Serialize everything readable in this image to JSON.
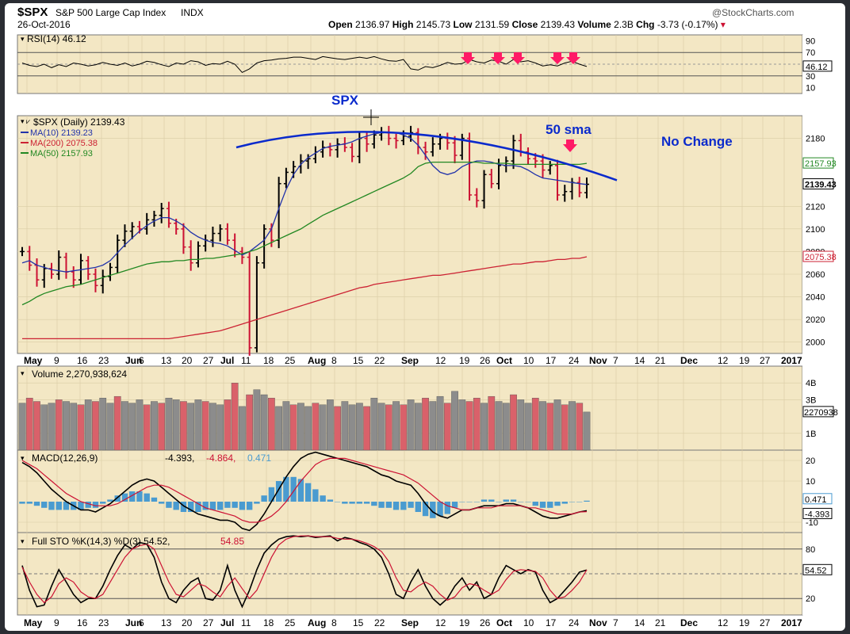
{
  "header": {
    "symbol": "$SPX",
    "name": "S&P 500 Large Cap Index",
    "exchange": "INDX",
    "date": "26-Oct-2016",
    "watermark": "@StockCharts.com",
    "open_label": "Open",
    "open": "2136.97",
    "high_label": "High",
    "high": "2145.73",
    "low_label": "Low",
    "low": "2131.59",
    "close_label": "Close",
    "close": "2139.43",
    "volume_label": "Volume",
    "volume": "2.3B",
    "chg_label": "Chg",
    "chg": "-3.73 (-0.17%)"
  },
  "colors": {
    "panel_bg": "#f3e7c4",
    "up_bar": "#000000",
    "down_bar": "#cc1133",
    "ma10": "#2233aa",
    "ma50": "#228822",
    "ma200": "#cc2233",
    "annotation": "#0a2acc",
    "arrow": "#ff1a66",
    "volume_up": "#8c8c8c",
    "volume_down": "#d9616a",
    "macd_hist": "#4a9bd0"
  },
  "annotations": {
    "spx": "SPX",
    "sma": "50 sma",
    "no_change": "No Change"
  },
  "x_axis": {
    "labels": [
      {
        "text": "May",
        "bold": true
      },
      {
        "text": "9"
      },
      {
        "text": "16"
      },
      {
        "text": "23"
      },
      {
        "text": "Jun",
        "bold": true
      },
      {
        "text": "6"
      },
      {
        "text": "13"
      },
      {
        "text": "20"
      },
      {
        "text": "27"
      },
      {
        "text": "Jul",
        "bold": true
      },
      {
        "text": "11"
      },
      {
        "text": "18"
      },
      {
        "text": "25"
      },
      {
        "text": "Aug",
        "bold": true
      },
      {
        "text": "8"
      },
      {
        "text": "15"
      },
      {
        "text": "22"
      },
      {
        "text": "Sep",
        "bold": true
      },
      {
        "text": "12"
      },
      {
        "text": "19"
      },
      {
        "text": "26"
      },
      {
        "text": "Oct",
        "bold": true
      },
      {
        "text": "10"
      },
      {
        "text": "17"
      },
      {
        "text": "24"
      },
      {
        "text": "Nov",
        "bold": true
      },
      {
        "text": "7"
      },
      {
        "text": "14"
      },
      {
        "text": "21"
      },
      {
        "text": "Dec",
        "bold": true
      },
      {
        "text": "12"
      },
      {
        "text": "19"
      },
      {
        "text": "27"
      },
      {
        "text": "2017",
        "bold": true
      }
    ]
  },
  "chart_data": [
    {
      "type": "line",
      "panel": "rsi",
      "title": "RSI(14) 46.12",
      "last_value": "46.12",
      "ylim": [
        0,
        100
      ],
      "y_ticks": [
        "90",
        "70",
        "30",
        "10"
      ],
      "reference_lines": [
        70,
        30
      ],
      "values": [
        52,
        48,
        46,
        50,
        44,
        49,
        46,
        52,
        50,
        47,
        49,
        53,
        50,
        48,
        52,
        47,
        50,
        55,
        53,
        49,
        46,
        52,
        50,
        56,
        54,
        48,
        51,
        50,
        55,
        50,
        36,
        42,
        52,
        56,
        57,
        59,
        60,
        62,
        62,
        60,
        58,
        63,
        61,
        59,
        58,
        60,
        62,
        60,
        63,
        59,
        56,
        55,
        58,
        42,
        40,
        46,
        44,
        48,
        53,
        50,
        51,
        58,
        54,
        52,
        57,
        55,
        50,
        58,
        54,
        56,
        52,
        47,
        49,
        47,
        52,
        55,
        50,
        46.12
      ],
      "signal_arrows": [
        0.82,
        0.87,
        0.91,
        0.97,
        1.0
      ]
    },
    {
      "type": "line",
      "panel": "price",
      "title": "$SPX (Daily) 2139.43",
      "ylim": [
        1990,
        2200
      ],
      "y_ticks": [
        "2180",
        "2120",
        "2100",
        "2080",
        "2060",
        "2040",
        "2020",
        "2000"
      ],
      "last_value": "2139.43",
      "series": [
        {
          "name": "MA(10) 2139.23",
          "last_value": "2139.23",
          "values": [
            2070,
            2072,
            2068,
            2066,
            2064,
            2063,
            2062,
            2063,
            2064,
            2065,
            2066,
            2068,
            2072,
            2079,
            2086,
            2092,
            2098,
            2103,
            2107,
            2110,
            2110,
            2107,
            2103,
            2097,
            2093,
            2090,
            2088,
            2087,
            2085,
            2081,
            2077,
            2080,
            2085,
            2090,
            2100,
            2118,
            2135,
            2148,
            2157,
            2163,
            2167,
            2171,
            2173,
            2174,
            2175,
            2177,
            2180,
            2182,
            2184,
            2185,
            2185,
            2185,
            2183,
            2180,
            2174,
            2165,
            2156,
            2150,
            2148,
            2150,
            2155,
            2158,
            2160,
            2160,
            2159,
            2157,
            2156,
            2156,
            2155,
            2152,
            2148,
            2145,
            2144,
            2143,
            2142,
            2141,
            2140,
            2139.23
          ]
        },
        {
          "name": "MA(200) 2075.38",
          "last_value": "2075.38",
          "values": [
            2003,
            2003,
            2003,
            2003,
            2003,
            2003,
            2003,
            2003,
            2003,
            2003,
            2003,
            2003,
            2003,
            2003,
            2003,
            2003,
            2003,
            2003,
            2003,
            2003,
            2003,
            2004,
            2005,
            2006,
            2007,
            2008,
            2009,
            2010,
            2012,
            2014,
            2016,
            2018,
            2020,
            2022,
            2024,
            2026,
            2028,
            2030,
            2032,
            2034,
            2036,
            2038,
            2040,
            2042,
            2044,
            2046,
            2048,
            2049,
            2051,
            2052,
            2053,
            2054,
            2055,
            2056,
            2057,
            2058,
            2059,
            2059,
            2060,
            2061,
            2062,
            2063,
            2064,
            2065,
            2066,
            2067,
            2068,
            2069,
            2069,
            2070,
            2071,
            2071,
            2072,
            2073,
            2073,
            2074,
            2074,
            2075.38
          ]
        },
        {
          "name": "MA(50) 2157.93",
          "last_value": "2157.93",
          "values": [
            2033,
            2036,
            2040,
            2043,
            2045,
            2047,
            2049,
            2050,
            2051,
            2053,
            2055,
            2057,
            2059,
            2061,
            2063,
            2065,
            2067,
            2069,
            2070,
            2071,
            2071,
            2072,
            2072,
            2073,
            2073,
            2074,
            2074,
            2075,
            2076,
            2077,
            2078,
            2080,
            2082,
            2085,
            2088,
            2091,
            2094,
            2097,
            2100,
            2104,
            2108,
            2112,
            2115,
            2118,
            2121,
            2124,
            2127,
            2130,
            2133,
            2136,
            2139,
            2142,
            2145,
            2149,
            2155,
            2158,
            2159,
            2159,
            2159,
            2159,
            2159,
            2159,
            2159,
            2158,
            2158,
            2158,
            2158,
            2157,
            2157,
            2157,
            2157,
            2157,
            2157,
            2157,
            2157,
            2157,
            2157,
            2157.93
          ]
        }
      ],
      "candles_close": [
        2080,
        2068,
        2055,
        2065,
        2060,
        2075,
        2062,
        2055,
        2072,
        2060,
        2050,
        2058,
        2066,
        2090,
        2098,
        2102,
        2100,
        2108,
        2112,
        2118,
        2105,
        2100,
        2084,
        2070,
        2085,
        2090,
        2096,
        2100,
        2090,
        2080,
        2075,
        1995,
        2070,
        2100,
        2090,
        2140,
        2150,
        2155,
        2160,
        2162,
        2168,
        2172,
        2170,
        2175,
        2172,
        2164,
        2180,
        2175,
        2183,
        2185,
        2180,
        2178,
        2182,
        2185,
        2172,
        2168,
        2175,
        2180,
        2176,
        2165,
        2180,
        2130,
        2125,
        2148,
        2140,
        2156,
        2160,
        2178,
        2168,
        2162,
        2160,
        2152,
        2156,
        2130,
        2133,
        2141,
        2132,
        2139.43
      ],
      "trend_arc": {
        "x_start": 0.37,
        "x_end": 0.98,
        "peak": 2192
      }
    },
    {
      "type": "bar",
      "panel": "volume",
      "title": "Volume 2,270,938,624",
      "y_ticks": [
        "4B",
        "3B",
        "1B"
      ],
      "last_value": "2270938",
      "ylim": [
        0,
        5
      ],
      "values": [
        2.8,
        3.1,
        2.9,
        2.7,
        2.8,
        3.0,
        2.9,
        2.8,
        2.7,
        3.0,
        2.9,
        3.1,
        2.8,
        3.2,
        2.9,
        2.8,
        3.0,
        2.7,
        2.9,
        2.8,
        3.1,
        3.0,
        2.9,
        2.8,
        3.0,
        2.9,
        2.8,
        2.7,
        3.0,
        4.0,
        2.6,
        3.3,
        3.6,
        3.3,
        3.1,
        2.6,
        2.9,
        2.7,
        2.8,
        2.6,
        2.8,
        2.7,
        3.0,
        2.6,
        2.9,
        2.7,
        2.8,
        2.6,
        3.1,
        2.8,
        2.7,
        2.9,
        2.7,
        3.0,
        2.8,
        3.1,
        2.9,
        3.2,
        2.8,
        3.5,
        3.0,
        2.9,
        3.1,
        2.8,
        3.2,
        2.9,
        2.8,
        3.3,
        3.0,
        2.8,
        3.1,
        2.9,
        2.8,
        3.0,
        2.7,
        2.9,
        2.8,
        2.27
      ],
      "down_days": [
        1,
        2,
        5,
        8,
        10,
        13,
        17,
        19,
        22,
        25,
        28,
        29,
        31,
        34,
        37,
        40,
        43,
        47,
        50,
        52,
        55,
        58,
        61,
        62,
        64,
        67,
        70,
        72,
        74,
        76
      ]
    },
    {
      "type": "line",
      "panel": "macd",
      "title_prefix": "MACD(12,26,9)",
      "title_macd": "-4.393",
      "title_signal": "-4.864",
      "title_hist": "0.471",
      "y_ticks": [
        "20",
        "10",
        "-10"
      ],
      "ylim": [
        -15,
        25
      ],
      "series": [
        {
          "name": "-4.393",
          "values": [
            19,
            17,
            14,
            10,
            6,
            3,
            0,
            -2,
            -4,
            -4,
            -5,
            -3,
            -1,
            2,
            5,
            8,
            10,
            11,
            10,
            7,
            4,
            1,
            -2,
            -4,
            -6,
            -7,
            -8,
            -9,
            -9,
            -10,
            -13,
            -14,
            -11,
            -6,
            0,
            6,
            12,
            17,
            21,
            23,
            24,
            23,
            22,
            21,
            20,
            19,
            18,
            17,
            15,
            13,
            12,
            10,
            9,
            8,
            4,
            -1,
            -5,
            -7,
            -8,
            -6,
            -4,
            -4,
            -3,
            -2,
            -2,
            -2,
            -1,
            -1,
            -2,
            -3,
            -5,
            -7,
            -8,
            -8,
            -7,
            -6,
            -5,
            -4.393
          ]
        },
        {
          "name": "-4.864",
          "values": [
            20,
            18,
            16,
            13,
            10,
            7,
            4,
            2,
            0,
            -1,
            -2,
            -2,
            -2,
            -1,
            1,
            3,
            5,
            7,
            8,
            8,
            7,
            5,
            3,
            1,
            -1,
            -3,
            -4,
            -5,
            -6,
            -7,
            -9,
            -10,
            -10,
            -9,
            -7,
            -4,
            0,
            5,
            10,
            14,
            18,
            20,
            21,
            21,
            21,
            20,
            19,
            18,
            17,
            16,
            15,
            14,
            13,
            11,
            9,
            6,
            3,
            0,
            -2,
            -3,
            -4,
            -4,
            -3,
            -3,
            -3,
            -2,
            -2,
            -2,
            -2,
            -3,
            -3,
            -4,
            -5,
            -6,
            -6,
            -6,
            -5,
            -4.864
          ]
        }
      ],
      "histogram": [
        -1,
        -1,
        -2,
        -3,
        -4,
        -4,
        -4,
        -4,
        -4,
        -3,
        -3,
        -1,
        1,
        3,
        4,
        5,
        5,
        4,
        2,
        -1,
        -3,
        -4,
        -5,
        -5,
        -5,
        -4,
        -4,
        -4,
        -3,
        -3,
        -4,
        -4,
        -1,
        3,
        7,
        10,
        12,
        12,
        11,
        9,
        6,
        3,
        1,
        0,
        -1,
        -1,
        -1,
        -1,
        -2,
        -3,
        -3,
        -4,
        -4,
        -3,
        -5,
        -7,
        -8,
        -7,
        -6,
        -3,
        0,
        0,
        0,
        1,
        1,
        0,
        1,
        1,
        0,
        0,
        -2,
        -3,
        -3,
        -2,
        -1,
        0,
        0,
        0.471
      ]
    },
    {
      "type": "line",
      "panel": "stochastic",
      "title_prefix": "Full STO %K(14,3) %D(3)",
      "title_k": "54.52",
      "title_d": "54.85",
      "y_ticks": [
        "80",
        "20"
      ],
      "reference_lines": [
        80,
        50,
        20
      ],
      "ylim": [
        0,
        100
      ],
      "series": [
        {
          "name": "54.52",
          "values": [
            60,
            30,
            10,
            12,
            35,
            55,
            40,
            25,
            15,
            20,
            20,
            35,
            55,
            72,
            85,
            80,
            88,
            86,
            70,
            40,
            20,
            15,
            30,
            40,
            45,
            20,
            18,
            30,
            60,
            30,
            10,
            30,
            55,
            75,
            85,
            92,
            95,
            96,
            95,
            96,
            94,
            95,
            96,
            90,
            94,
            92,
            88,
            85,
            80,
            70,
            50,
            25,
            20,
            40,
            55,
            35,
            20,
            12,
            20,
            35,
            45,
            30,
            40,
            20,
            25,
            45,
            60,
            55,
            50,
            55,
            52,
            30,
            15,
            20,
            30,
            40,
            52,
            54.52
          ]
        },
        {
          "name": "54.85",
          "values": [
            58,
            40,
            25,
            15,
            22,
            38,
            45,
            40,
            28,
            22,
            20,
            25,
            40,
            55,
            70,
            80,
            84,
            86,
            80,
            60,
            40,
            25,
            22,
            30,
            38,
            35,
            28,
            22,
            35,
            45,
            32,
            20,
            30,
            50,
            70,
            85,
            92,
            95,
            96,
            96,
            95,
            95,
            95,
            93,
            92,
            92,
            90,
            87,
            83,
            77,
            65,
            45,
            30,
            28,
            35,
            40,
            35,
            25,
            18,
            22,
            33,
            38,
            36,
            30,
            25,
            30,
            43,
            53,
            55,
            54,
            53,
            45,
            30,
            20,
            22,
            30,
            40,
            54.85
          ]
        }
      ]
    }
  ]
}
